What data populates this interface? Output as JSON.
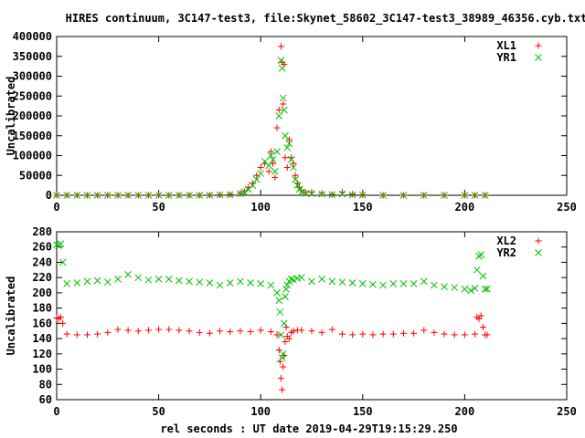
{
  "title": "HIRES continuum, 3C147-test3, file:Skynet_58602_3C147-test3_38989_46356.cyb.txt",
  "xlabel": "rel seconds : UT date 2019-04-29T19:15:29.250",
  "chart_data": [
    {
      "type": "scatter",
      "ylabel": "Uncalibrated",
      "xlim": [
        0,
        250
      ],
      "ylim": [
        0,
        400000
      ],
      "xticks": [
        "0",
        "50",
        "100",
        "150",
        "200",
        "250"
      ],
      "yticks": [
        "0",
        "50000",
        "100000",
        "150000",
        "200000",
        "250000",
        "300000",
        "350000",
        "400000"
      ],
      "legend_position": "top-right",
      "grid": false,
      "series": [
        {
          "name": "XL1",
          "color": "#ff0000",
          "marker": "plus",
          "x": [
            0,
            5,
            10,
            15,
            20,
            25,
            30,
            35,
            40,
            45,
            50,
            55,
            60,
            65,
            70,
            75,
            80,
            85,
            90,
            92,
            94,
            96,
            98,
            100,
            102,
            104,
            105,
            106,
            107,
            108,
            109,
            110,
            110.5,
            111,
            111.5,
            112,
            113,
            114,
            115,
            116,
            117,
            118,
            119,
            120,
            122,
            125,
            130,
            135,
            140,
            145,
            150,
            160,
            170,
            180,
            190,
            200,
            205,
            210
          ],
          "y": [
            0,
            0,
            0,
            0,
            0,
            0,
            0,
            0,
            0,
            0,
            0,
            0,
            0,
            0,
            0,
            500,
            1000,
            2000,
            5000,
            10000,
            20000,
            30000,
            50000,
            70000,
            80000,
            60000,
            110000,
            80000,
            45000,
            170000,
            215000,
            375000,
            335000,
            230000,
            330000,
            95000,
            70000,
            140000,
            95000,
            80000,
            50000,
            30000,
            20000,
            12000,
            7000,
            8000,
            5000,
            2000,
            8000,
            3000,
            1000,
            0,
            0,
            0,
            0,
            0,
            0,
            0
          ]
        },
        {
          "name": "YR1",
          "color": "#00c000",
          "marker": "cross",
          "x": [
            0,
            5,
            10,
            15,
            20,
            25,
            30,
            35,
            40,
            45,
            50,
            55,
            60,
            65,
            70,
            75,
            80,
            85,
            90,
            92,
            94,
            96,
            98,
            100,
            102,
            104,
            105,
            106,
            107,
            108,
            109,
            110,
            110.5,
            111,
            111.5,
            112,
            113,
            114,
            115,
            116,
            117,
            118,
            119,
            120,
            122,
            125,
            130,
            135,
            140,
            145,
            150,
            160,
            170,
            180,
            190,
            200,
            205,
            210
          ],
          "y": [
            0,
            0,
            0,
            0,
            0,
            0,
            0,
            0,
            0,
            0,
            0,
            0,
            0,
            0,
            0,
            300,
            800,
            1500,
            4000,
            8000,
            15000,
            25000,
            40000,
            55000,
            85000,
            75000,
            100000,
            90000,
            60000,
            110000,
            200000,
            340000,
            320000,
            245000,
            215000,
            150000,
            120000,
            130000,
            90000,
            70000,
            40000,
            25000,
            15000,
            8000,
            5000,
            4000,
            3000,
            1500,
            3000,
            1000,
            500,
            0,
            0,
            0,
            0,
            0,
            0,
            0
          ]
        }
      ]
    },
    {
      "type": "scatter",
      "ylabel": "Uncalibrated",
      "xlim": [
        0,
        250
      ],
      "ylim": [
        60,
        280
      ],
      "xticks": [
        "0",
        "50",
        "100",
        "150",
        "200",
        "250"
      ],
      "yticks": [
        "60",
        "80",
        "100",
        "120",
        "140",
        "160",
        "180",
        "200",
        "220",
        "240",
        "260",
        "280"
      ],
      "legend_position": "top-right",
      "grid": false,
      "series": [
        {
          "name": "XL2",
          "color": "#ff0000",
          "marker": "plus",
          "x": [
            0,
            1,
            2,
            3,
            5,
            10,
            15,
            20,
            25,
            30,
            35,
            40,
            45,
            50,
            55,
            60,
            65,
            70,
            75,
            80,
            85,
            90,
            95,
            100,
            105,
            108,
            109,
            109.5,
            110,
            110.5,
            111,
            111.5,
            112,
            112.5,
            113,
            114,
            115,
            116,
            118,
            120,
            125,
            130,
            135,
            140,
            145,
            150,
            155,
            160,
            165,
            170,
            175,
            180,
            185,
            190,
            195,
            200,
            205,
            206,
            207,
            208,
            209,
            210,
            211
          ],
          "y": [
            167,
            166,
            168,
            160,
            146,
            145,
            145,
            146,
            148,
            152,
            151,
            150,
            151,
            152,
            152,
            151,
            150,
            148,
            147,
            150,
            149,
            150,
            149,
            151,
            149,
            145,
            125,
            110,
            88,
            73,
            103,
            118,
            136,
            155,
            143,
            140,
            148,
            150,
            151,
            151,
            150,
            148,
            152,
            146,
            145,
            146,
            145,
            146,
            146,
            147,
            147,
            151,
            148,
            146,
            145,
            145,
            146,
            168,
            166,
            170,
            155,
            145,
            145
          ]
        },
        {
          "name": "YR2",
          "color": "#00c000",
          "marker": "cross",
          "x": [
            0,
            1,
            2,
            3,
            5,
            10,
            15,
            20,
            25,
            30,
            35,
            40,
            45,
            50,
            55,
            60,
            65,
            70,
            75,
            80,
            85,
            90,
            95,
            100,
            105,
            108,
            109,
            109.5,
            110,
            110.5,
            111,
            111.5,
            112,
            112.5,
            113,
            114,
            115,
            116,
            118,
            120,
            125,
            130,
            135,
            140,
            145,
            150,
            155,
            160,
            165,
            170,
            175,
            180,
            185,
            190,
            195,
            200,
            203,
            205,
            206,
            207,
            208,
            209,
            210,
            211
          ],
          "y": [
            263,
            262,
            264,
            240,
            212,
            213,
            215,
            216,
            214,
            218,
            224,
            220,
            217,
            218,
            218,
            216,
            215,
            214,
            213,
            210,
            213,
            215,
            213,
            212,
            210,
            200,
            190,
            175,
            145,
            115,
            120,
            160,
            195,
            205,
            210,
            215,
            218,
            217,
            219,
            220,
            215,
            218,
            215,
            214,
            213,
            212,
            211,
            210,
            212,
            212,
            212,
            215,
            210,
            208,
            207,
            205,
            203,
            206,
            230,
            248,
            250,
            222,
            205,
            205
          ]
        }
      ]
    }
  ]
}
